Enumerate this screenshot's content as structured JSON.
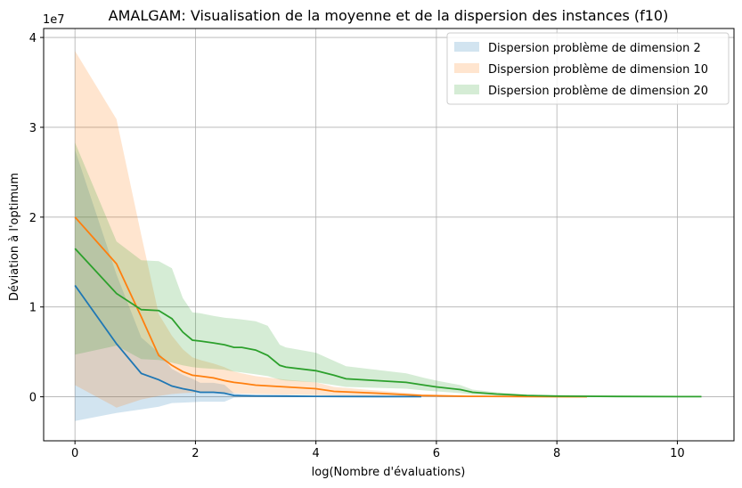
{
  "chart_data": {
    "type": "line",
    "title": "AMALGAM: Visualisation de la moyenne et de la dispersion des instances (f10)",
    "xlabel": "log(Nombre d'évaluations)",
    "ylabel": "Déviation à l'optimum",
    "y_offset_text": "1e7",
    "xlim": [
      -0.52,
      10.94
    ],
    "ylim": [
      -4.9,
      41
    ],
    "x_ticks": [
      0,
      2,
      4,
      6,
      8,
      10
    ],
    "x_tick_labels": [
      "0",
      "2",
      "4",
      "6",
      "8",
      "10"
    ],
    "y_ticks": [
      0,
      10,
      20,
      30,
      40
    ],
    "y_tick_labels": [
      "0",
      "1",
      "2",
      "3",
      "4"
    ],
    "y_unit_note": "values in units of 1e6",
    "grid": true,
    "legend_position": "top-right",
    "series": [
      {
        "name": "Dispersion problème de dimension 2",
        "color": "#1f77b4",
        "x": [
          0,
          0.69,
          1.1,
          1.39,
          1.61,
          1.79,
          1.95,
          2.08,
          2.3,
          2.48,
          2.64,
          2.77,
          3.0,
          3.5,
          4.0,
          5.0,
          5.75
        ],
        "mean": [
          12.4,
          5.9,
          2.6,
          1.9,
          1.2,
          0.9,
          0.7,
          0.5,
          0.5,
          0.4,
          0.15,
          0.12,
          0.1,
          0.08,
          0.05,
          0.03,
          0.02
        ],
        "lower": [
          -2.7,
          -1.8,
          -1.4,
          -1.1,
          -0.7,
          -0.65,
          -0.6,
          -0.55,
          -0.55,
          -0.55,
          -0.1,
          -0.05,
          -0.03,
          -0.02,
          -0.02,
          -0.01,
          -0.01
        ],
        "upper": [
          27.5,
          13.6,
          6.6,
          4.9,
          3.1,
          2.45,
          2.0,
          1.55,
          1.55,
          1.35,
          0.4,
          0.3,
          0.22,
          0.18,
          0.12,
          0.07,
          0.05
        ]
      },
      {
        "name": "Dispersion problème de dimension 10",
        "color": "#ff7f0e",
        "x": [
          0,
          0.69,
          1.1,
          1.39,
          1.61,
          1.79,
          1.95,
          2.08,
          2.3,
          2.48,
          2.64,
          2.77,
          3.0,
          3.5,
          4.0,
          4.3,
          5.0,
          5.75,
          6.5,
          7.5,
          8.5
        ],
        "mean": [
          20.0,
          14.8,
          8.9,
          4.6,
          3.5,
          2.8,
          2.4,
          2.3,
          2.1,
          1.8,
          1.6,
          1.5,
          1.3,
          1.1,
          0.9,
          0.6,
          0.4,
          0.15,
          0.06,
          0.02,
          0.01
        ],
        "lower": [
          1.3,
          -1.2,
          -0.3,
          0.1,
          0.3,
          0.4,
          0.45,
          0.5,
          0.5,
          0.45,
          0.4,
          0.35,
          0.3,
          0.25,
          0.2,
          0.15,
          0.1,
          0.03,
          0.01,
          0.0,
          0.0
        ],
        "upper": [
          38.5,
          30.9,
          18.0,
          9.2,
          6.8,
          5.3,
          4.4,
          4.1,
          3.7,
          3.3,
          2.8,
          2.6,
          2.3,
          1.9,
          1.6,
          1.1,
          0.7,
          0.3,
          0.12,
          0.04,
          0.02
        ]
      },
      {
        "name": "Dispersion problème de dimension 20",
        "color": "#2ca02c",
        "x": [
          0,
          0.69,
          1.1,
          1.39,
          1.61,
          1.79,
          1.95,
          2.08,
          2.3,
          2.48,
          2.64,
          2.77,
          3.0,
          3.2,
          3.4,
          3.5,
          4.0,
          4.3,
          4.5,
          5.0,
          5.5,
          5.8,
          6.0,
          6.4,
          6.6,
          7.0,
          7.5,
          8.0,
          9.0,
          10.4
        ],
        "mean": [
          16.5,
          11.5,
          9.7,
          9.6,
          8.7,
          7.2,
          6.3,
          6.2,
          6.0,
          5.8,
          5.5,
          5.5,
          5.2,
          4.6,
          3.5,
          3.3,
          2.9,
          2.4,
          2.0,
          1.8,
          1.6,
          1.3,
          1.1,
          0.8,
          0.5,
          0.3,
          0.15,
          0.08,
          0.04,
          0.02
        ],
        "lower": [
          4.7,
          5.7,
          4.2,
          4.1,
          3.8,
          3.5,
          3.3,
          3.2,
          3.1,
          3.0,
          2.8,
          2.7,
          2.5,
          2.3,
          1.9,
          1.8,
          1.6,
          1.3,
          1.1,
          1.0,
          0.9,
          0.7,
          0.6,
          0.4,
          0.25,
          0.15,
          0.08,
          0.04,
          0.02,
          0.01
        ],
        "upper": [
          28.3,
          17.3,
          15.2,
          15.1,
          14.3,
          11.0,
          9.4,
          9.3,
          9.0,
          8.8,
          8.7,
          8.6,
          8.4,
          7.9,
          5.8,
          5.5,
          4.9,
          4.0,
          3.4,
          3.0,
          2.6,
          2.1,
          1.8,
          1.3,
          0.8,
          0.5,
          0.25,
          0.13,
          0.07,
          0.04
        ]
      }
    ]
  }
}
